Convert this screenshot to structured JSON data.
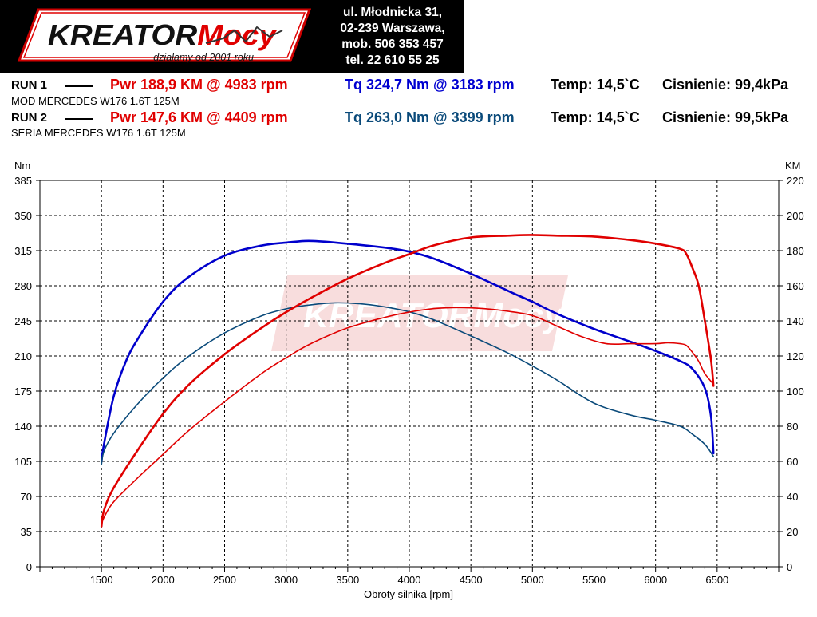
{
  "header": {
    "logo_text": "KreatorMocy",
    "logo_tagline": "działamy od 2001 roku",
    "address_lines": [
      "ul. Młodnicka 31,",
      "02-239  Warszawa,",
      "mob.  506 353 457",
      "tel.  22 610 55 25"
    ]
  },
  "runs": [
    {
      "label": "RUN 1",
      "power": "Pwr  188,9 KM @ 4983 rpm",
      "torque": "Tq 324,7 Nm @ 3183 rpm",
      "temp": "Temp: 14,5`C",
      "pressure": "Cisnienie: 99,4kPa",
      "car": "MOD MERCEDES W176 1.6T 125M"
    },
    {
      "label": "RUN 2",
      "power": "Pwr  147,6 KM @ 4409 rpm",
      "torque": "Tq 263,0 Nm @ 3399 rpm",
      "temp": "Temp: 14,5`C",
      "pressure": "Cisnienie: 99,5kPa",
      "car": "SERIA MERCEDES W176 1.6T 125M"
    }
  ],
  "colors": {
    "power_run1": "#e00000",
    "power_run2": "#e00000",
    "torque_run1": "#0000cc",
    "torque_run2": "#0a4a7a"
  },
  "chart_data": {
    "type": "line",
    "xlabel": "Obroty silnika [rpm]",
    "ylabel_left": "Nm",
    "ylabel_right": "KM",
    "xlim": [
      1000,
      7000
    ],
    "ylim_left": [
      0,
      385
    ],
    "ylim_right": [
      0,
      220
    ],
    "xticks": [
      1500,
      2000,
      2500,
      3000,
      3500,
      4000,
      4500,
      5000,
      5500,
      6000,
      6500
    ],
    "yticks_left": [
      0,
      35,
      70,
      105,
      140,
      175,
      210,
      245,
      280,
      315,
      350,
      385
    ],
    "yticks_right": [
      0,
      20,
      40,
      60,
      80,
      100,
      120,
      140,
      160,
      180,
      200,
      220
    ],
    "grid": true,
    "series": [
      {
        "axis": "left",
        "quantity": "torque",
        "run": 1,
        "x": [
          1500,
          1520,
          1600,
          1700,
          1800,
          2000,
          2200,
          2500,
          2800,
          3000,
          3183,
          3400,
          3800,
          4000,
          4200,
          4500,
          4800,
          5000,
          5200,
          5500,
          5800,
          6000,
          6200,
          6300,
          6400,
          6450,
          6470
        ],
        "y": [
          105,
          122,
          170,
          205,
          228,
          264,
          288,
          310,
          320,
          323,
          324.7,
          323,
          318,
          314,
          307,
          292,
          275,
          264,
          252,
          237,
          224,
          215,
          205,
          197,
          178,
          150,
          113
        ]
      },
      {
        "axis": "left",
        "quantity": "torque",
        "run": 2,
        "x": [
          1500,
          1520,
          1600,
          1800,
          2000,
          2200,
          2500,
          2800,
          3000,
          3200,
          3399,
          3600,
          3800,
          4000,
          4200,
          4500,
          4800,
          5000,
          5200,
          5500,
          5800,
          6000,
          6200,
          6300,
          6400,
          6470
        ],
        "y": [
          102,
          115,
          133,
          163,
          188,
          209,
          233,
          250,
          257,
          261,
          263,
          262,
          259,
          254,
          246,
          230,
          213,
          200,
          186,
          163,
          151,
          146,
          140,
          132,
          122,
          110
        ]
      },
      {
        "axis": "right",
        "quantity": "power",
        "run": 1,
        "x": [
          1500,
          1520,
          1600,
          1800,
          2000,
          2200,
          2500,
          2800,
          3000,
          3200,
          3500,
          3800,
          4000,
          4200,
          4500,
          4800,
          4983,
          5200,
          5500,
          5800,
          6000,
          6200,
          6250,
          6300,
          6350,
          6400,
          6450,
          6470
        ],
        "y": [
          23,
          32,
          45,
          67,
          87,
          103,
          121,
          136,
          145,
          153,
          164,
          173,
          178,
          183,
          187.5,
          188.5,
          188.9,
          188.5,
          188,
          186,
          184,
          181,
          178,
          170,
          160,
          140,
          118,
          103
        ]
      },
      {
        "axis": "right",
        "quantity": "power",
        "run": 2,
        "x": [
          1500,
          1520,
          1600,
          1800,
          2000,
          2200,
          2500,
          2800,
          3000,
          3200,
          3500,
          3800,
          4000,
          4200,
          4409,
          4600,
          4800,
          5000,
          5200,
          5400,
          5600,
          5800,
          6000,
          6100,
          6200,
          6250,
          6300,
          6350,
          6400,
          6470
        ],
        "y": [
          24,
          28,
          37,
          51,
          64,
          77,
          94,
          110,
          119,
          127,
          136,
          142,
          145,
          147,
          147.6,
          147,
          145.5,
          143,
          137,
          131,
          127,
          127,
          127,
          127.5,
          127,
          126,
          122,
          117,
          110,
          104
        ]
      }
    ]
  }
}
